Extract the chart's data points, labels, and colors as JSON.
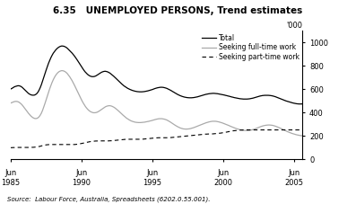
{
  "title": "6.35   UNEMPLOYED PERSONS, Trend estimates",
  "source_text": "Source:  Labour Force, Australia, Spreadsheets (6202.0.55.001).",
  "ylabel": "'000",
  "ylim": [
    0,
    1100
  ],
  "yticks": [
    0,
    200,
    400,
    600,
    800,
    1000
  ],
  "legend_labels": [
    "Total",
    "Seeking full-time work",
    "Seeking part-time work"
  ],
  "bg_color": "#ffffff",
  "total": [
    600,
    605,
    612,
    618,
    622,
    625,
    628,
    628,
    625,
    620,
    612,
    602,
    592,
    582,
    572,
    563,
    556,
    551,
    548,
    547,
    548,
    552,
    560,
    572,
    590,
    612,
    638,
    668,
    700,
    732,
    762,
    792,
    820,
    845,
    868,
    888,
    906,
    920,
    933,
    944,
    953,
    960,
    965,
    968,
    968,
    966,
    962,
    956,
    948,
    938,
    928,
    918,
    907,
    895,
    882,
    868,
    853,
    838,
    822,
    806,
    790,
    775,
    760,
    747,
    736,
    726,
    718,
    712,
    708,
    706,
    706,
    708,
    712,
    718,
    725,
    732,
    738,
    744,
    748,
    751,
    752,
    750,
    747,
    742,
    736,
    728,
    720,
    711,
    702,
    692,
    682,
    672,
    662,
    652,
    643,
    634,
    626,
    619,
    612,
    606,
    601,
    596,
    592,
    588,
    585,
    582,
    580,
    578,
    577,
    576,
    576,
    576,
    577,
    578,
    580,
    582,
    584,
    587,
    590,
    593,
    596,
    600,
    604,
    607,
    610,
    612,
    614,
    615,
    615,
    614,
    612,
    609,
    606,
    601,
    596,
    591,
    585,
    579,
    573,
    567,
    561,
    555,
    550,
    545,
    541,
    537,
    534,
    531,
    529,
    527,
    526,
    525,
    525,
    525,
    526,
    527,
    529,
    531,
    533,
    536,
    539,
    542,
    545,
    548,
    551,
    554,
    556,
    558,
    560,
    561,
    562,
    563,
    563,
    562,
    561,
    560,
    558,
    556,
    554,
    552,
    550,
    548,
    545,
    543,
    540,
    538,
    535,
    532,
    530,
    527,
    525,
    523,
    521,
    519,
    517,
    516,
    515,
    514,
    514,
    514,
    514,
    515,
    516,
    518,
    520,
    522,
    525,
    528,
    531,
    534,
    537,
    540,
    542,
    544,
    545,
    546,
    546,
    546,
    546,
    545,
    544,
    542,
    540,
    537,
    534,
    530,
    526,
    522,
    518,
    514,
    510,
    506,
    502,
    498,
    495,
    492,
    489,
    486,
    483,
    480,
    478,
    476,
    474,
    473,
    472,
    472,
    472,
    473
  ],
  "full_time": [
    480,
    484,
    488,
    492,
    494,
    494,
    492,
    487,
    480,
    471,
    460,
    447,
    434,
    420,
    406,
    393,
    381,
    370,
    361,
    354,
    349,
    347,
    348,
    353,
    362,
    376,
    394,
    418,
    446,
    476,
    508,
    540,
    572,
    602,
    630,
    656,
    679,
    699,
    716,
    730,
    741,
    749,
    754,
    757,
    757,
    754,
    749,
    741,
    731,
    718,
    704,
    688,
    671,
    652,
    632,
    611,
    590,
    568,
    547,
    526,
    506,
    487,
    470,
    454,
    440,
    428,
    418,
    410,
    404,
    400,
    397,
    397,
    398,
    401,
    406,
    412,
    419,
    426,
    434,
    441,
    447,
    452,
    455,
    457,
    457,
    455,
    451,
    446,
    440,
    432,
    424,
    415,
    406,
    396,
    386,
    377,
    368,
    359,
    351,
    344,
    338,
    332,
    327,
    323,
    320,
    317,
    315,
    314,
    313,
    313,
    313,
    314,
    315,
    316,
    318,
    320,
    322,
    324,
    327,
    329,
    332,
    335,
    338,
    341,
    343,
    345,
    346,
    346,
    346,
    344,
    342,
    339,
    335,
    330,
    324,
    318,
    311,
    305,
    298,
    291,
    285,
    279,
    274,
    269,
    265,
    262,
    259,
    258,
    257,
    257,
    258,
    259,
    261,
    264,
    267,
    270,
    274,
    278,
    282,
    286,
    290,
    294,
    298,
    302,
    306,
    310,
    313,
    316,
    319,
    321,
    323,
    324,
    324,
    324,
    323,
    321,
    319,
    316,
    313,
    310,
    306,
    302,
    298,
    294,
    290,
    286,
    281,
    277,
    273,
    269,
    265,
    261,
    258,
    255,
    252,
    249,
    247,
    246,
    245,
    245,
    245,
    245,
    246,
    248,
    250,
    253,
    256,
    260,
    264,
    268,
    272,
    276,
    280,
    283,
    286,
    288,
    290,
    291,
    292,
    292,
    291,
    290,
    288,
    285,
    282,
    278,
    274,
    270,
    265,
    261,
    256,
    251,
    246,
    241,
    236,
    232,
    228,
    224,
    220,
    217,
    214,
    211,
    208,
    206,
    204,
    202,
    201,
    200
  ],
  "part_time": [
    98,
    98,
    99,
    99,
    100,
    100,
    100,
    100,
    100,
    100,
    100,
    100,
    100,
    100,
    100,
    100,
    100,
    100,
    101,
    101,
    102,
    103,
    104,
    106,
    108,
    110,
    113,
    116,
    118,
    120,
    122,
    123,
    124,
    125,
    125,
    125,
    125,
    125,
    125,
    125,
    125,
    125,
    125,
    125,
    125,
    125,
    125,
    125,
    125,
    125,
    125,
    125,
    125,
    125,
    125,
    126,
    127,
    128,
    130,
    132,
    134,
    136,
    138,
    140,
    143,
    145,
    147,
    149,
    151,
    152,
    153,
    154,
    155,
    155,
    156,
    156,
    156,
    156,
    156,
    156,
    156,
    156,
    156,
    156,
    157,
    157,
    158,
    159,
    160,
    161,
    162,
    163,
    164,
    165,
    166,
    167,
    168,
    169,
    169,
    170,
    170,
    170,
    170,
    170,
    170,
    170,
    170,
    170,
    170,
    170,
    170,
    170,
    171,
    172,
    173,
    174,
    175,
    176,
    177,
    178,
    179,
    180,
    181,
    182,
    182,
    183,
    183,
    183,
    183,
    183,
    183,
    183,
    183,
    183,
    183,
    184,
    185,
    186,
    187,
    188,
    189,
    190,
    191,
    192,
    193,
    194,
    195,
    196,
    197,
    198,
    199,
    200,
    201,
    202,
    203,
    204,
    205,
    206,
    207,
    208,
    209,
    210,
    211,
    212,
    213,
    214,
    214,
    215,
    215,
    215,
    216,
    216,
    217,
    218,
    219,
    220,
    221,
    222,
    223,
    225,
    226,
    228,
    230,
    232,
    234,
    236,
    238,
    240,
    242,
    243,
    244,
    245,
    246,
    247,
    248,
    249,
    249,
    250,
    250,
    250,
    250,
    250,
    250,
    250,
    250,
    250,
    250,
    250,
    250,
    250,
    250,
    250,
    250,
    250,
    250,
    250,
    250,
    250,
    250,
    250,
    250,
    250,
    250,
    250,
    250,
    250,
    250,
    250,
    250,
    250,
    250,
    250,
    250,
    250,
    250,
    250,
    250,
    250,
    250,
    250,
    250,
    250,
    250,
    250,
    250,
    250,
    250,
    250
  ],
  "n_points": 248,
  "xtick_years": [
    "1985",
    "1990",
    "1995",
    "2000",
    "2005"
  ],
  "xtick_positions": [
    0,
    60,
    120,
    180,
    240
  ]
}
